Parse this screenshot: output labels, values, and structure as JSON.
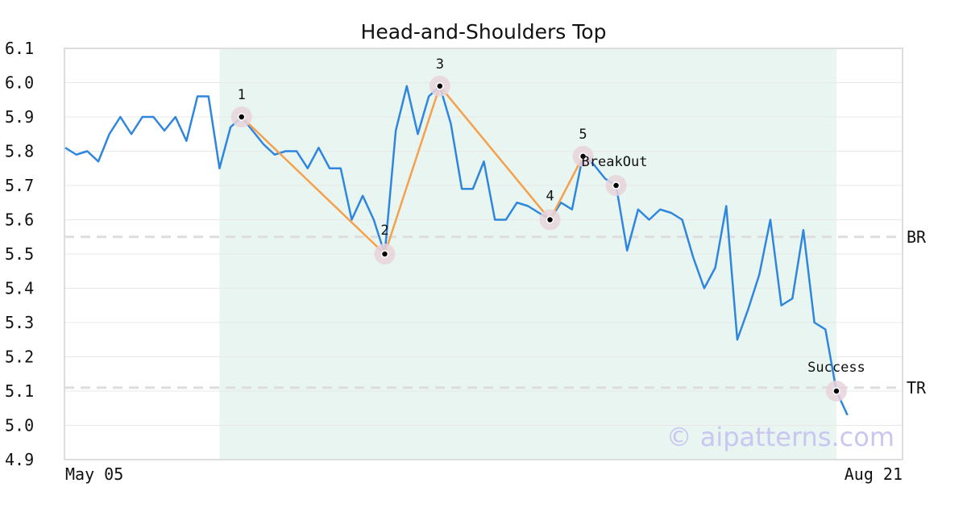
{
  "chart_data": {
    "type": "line",
    "title": "Head-and-Shoulders Top",
    "xlabel": "",
    "ylabel": "",
    "ylim": [
      4.9,
      6.1
    ],
    "yticks": [
      "6.1",
      "6.0",
      "5.9",
      "5.8",
      "5.7",
      "5.6",
      "5.5",
      "5.4",
      "5.3",
      "5.2",
      "5.1",
      "5.0",
      "4.9"
    ],
    "x_tick_labels": [
      {
        "index": 0,
        "label": "May 05"
      },
      {
        "index": 76,
        "label": "Aug 21"
      }
    ],
    "grid": "horizontal",
    "colors": {
      "line": "#2e86de",
      "pattern": "#f5a04a",
      "highlight": "#e9f5f1",
      "marker_halo": "#e8d3dc",
      "level": "#dddddd",
      "watermark": "#c9c6f2"
    },
    "pattern_region": {
      "start_index": 14,
      "end_index": 70
    },
    "series": [
      {
        "values": [
          5.81,
          5.79,
          5.8,
          5.77,
          5.85,
          5.9,
          5.85,
          5.9,
          5.9,
          5.86,
          5.9,
          5.83,
          5.96,
          5.96,
          5.75,
          5.87,
          5.9,
          5.86,
          5.82,
          5.79,
          5.8,
          5.8,
          5.75,
          5.81,
          5.75,
          5.75,
          5.6,
          5.67,
          5.6,
          5.5,
          5.86,
          5.99,
          5.85,
          5.96,
          5.99,
          5.88,
          5.69,
          5.69,
          5.77,
          5.6,
          5.6,
          5.65,
          5.64,
          5.62,
          5.6,
          5.65,
          5.63,
          5.79,
          5.76,
          5.72,
          5.7,
          5.51,
          5.63,
          5.6,
          5.63,
          5.62,
          5.6,
          5.49,
          5.4,
          5.46,
          5.64,
          5.25,
          5.34,
          5.44,
          5.6,
          5.35,
          5.37,
          5.57,
          5.3,
          5.28,
          5.1,
          5.03
        ]
      }
    ],
    "pattern_points": [
      {
        "index": 16,
        "value": 5.9,
        "label": "1"
      },
      {
        "index": 29,
        "value": 5.5,
        "label": "2"
      },
      {
        "index": 34,
        "value": 5.99,
        "label": "3"
      },
      {
        "index": 44,
        "value": 5.6,
        "label": "4"
      },
      {
        "index": 47,
        "value": 5.785,
        "label": "5"
      }
    ],
    "events": [
      {
        "index": 50,
        "value": 5.7,
        "label": "BreakOut"
      },
      {
        "index": 70,
        "value": 5.1,
        "label": "Success"
      }
    ],
    "levels": [
      {
        "value": 5.55,
        "label": "BR"
      },
      {
        "value": 5.11,
        "label": "TR"
      }
    ],
    "watermark": "© aipatterns.com"
  }
}
